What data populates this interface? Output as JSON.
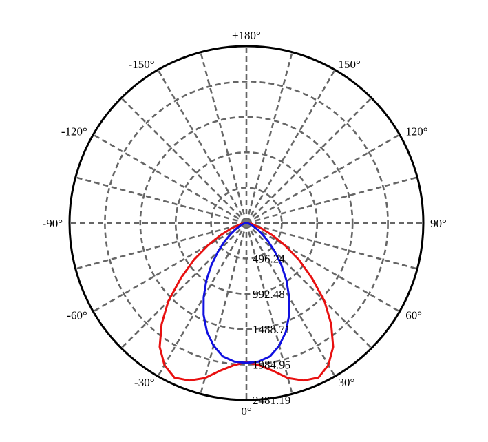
{
  "chart_data": {
    "type": "polar",
    "radial_range": [
      0,
      2481.19
    ],
    "radial_ticks": [
      496.24,
      992.48,
      1488.71,
      1984.95,
      2481.19
    ],
    "radial_tick_labels": [
      "496.24",
      "992.48",
      "1488.71",
      "1984.95",
      "2481.19"
    ],
    "angular_tick_labels": [
      {
        "angle": 0,
        "text": "0°"
      },
      {
        "angle": 30,
        "text": "30°"
      },
      {
        "angle": 60,
        "text": "60°"
      },
      {
        "angle": 90,
        "text": "90°"
      },
      {
        "angle": 120,
        "text": "120°"
      },
      {
        "angle": 150,
        "text": "150°"
      },
      {
        "angle": 180,
        "text": "±180°"
      },
      {
        "angle": -150,
        "text": "-150°"
      },
      {
        "angle": -120,
        "text": "-120°"
      },
      {
        "angle": -90,
        "text": "-90°"
      },
      {
        "angle": -60,
        "text": "-60°"
      },
      {
        "angle": -30,
        "text": "-30°"
      }
    ],
    "angular_grid_step_deg": 15,
    "grid": true,
    "series": [
      {
        "color": "#e81010",
        "symmetric": true,
        "angles": [
          0,
          5,
          10,
          15,
          20,
          25,
          30,
          35,
          40,
          45,
          50,
          55,
          60,
          65,
          70,
          80,
          90
        ],
        "values": [
          1950,
          2000,
          2100,
          2250,
          2350,
          2390,
          2300,
          2120,
          1850,
          1550,
          1200,
          900,
          620,
          400,
          230,
          80,
          0
        ]
      },
      {
        "color": "#1010e0",
        "symmetric": true,
        "angles": [
          0,
          5,
          10,
          15,
          20,
          25,
          30,
          35,
          40,
          45,
          50,
          55,
          60,
          70,
          80,
          90
        ],
        "values": [
          1960,
          1950,
          1900,
          1780,
          1620,
          1420,
          1200,
          980,
          760,
          560,
          400,
          270,
          180,
          80,
          25,
          0
        ]
      }
    ]
  }
}
